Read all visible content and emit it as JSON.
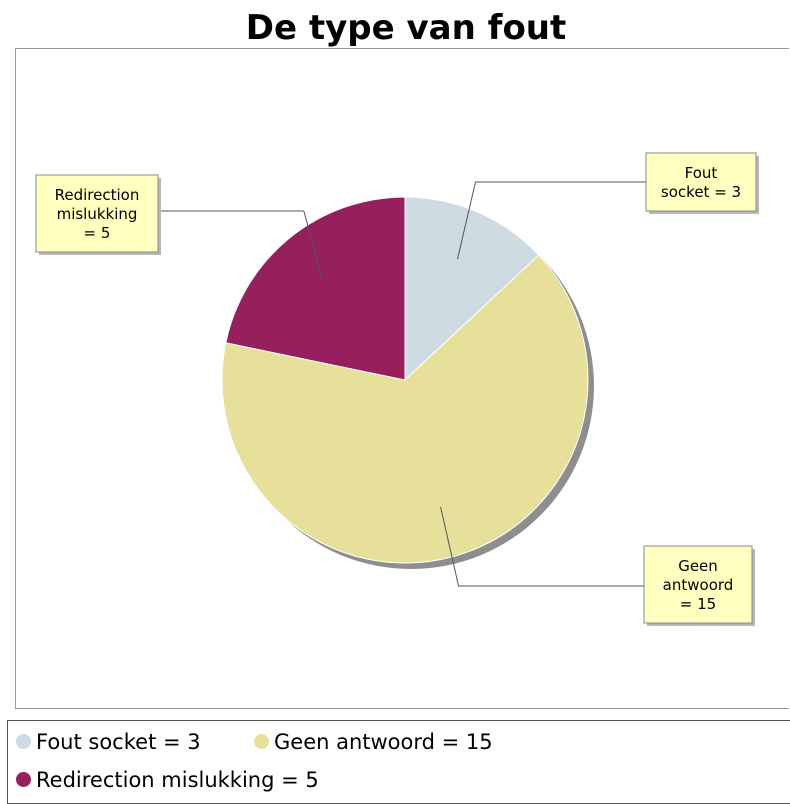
{
  "chart_data": {
    "type": "pie",
    "title": "De type van fout",
    "slices": [
      {
        "name": "Fout socket",
        "value": 3,
        "color": "#cfdbe2",
        "callout": [
          "Fout",
          "socket = 3"
        ],
        "legend": "Fout socket = 3"
      },
      {
        "name": "Geen antwoord",
        "value": 15,
        "color": "#e6e09a",
        "callout": [
          "Geen",
          "antwoord",
          "= 15"
        ],
        "legend": "Geen antwoord = 15"
      },
      {
        "name": "Redirection mislukking",
        "value": 5,
        "color": "#96205e",
        "callout": [
          "Redirection",
          "mislukking",
          "= 5"
        ],
        "legend": "Redirection mislukking = 5"
      }
    ],
    "start_angle_deg": 0,
    "direction": "clockwise",
    "legend_placement": "bottom",
    "label_box_color": "#ffffc0"
  }
}
